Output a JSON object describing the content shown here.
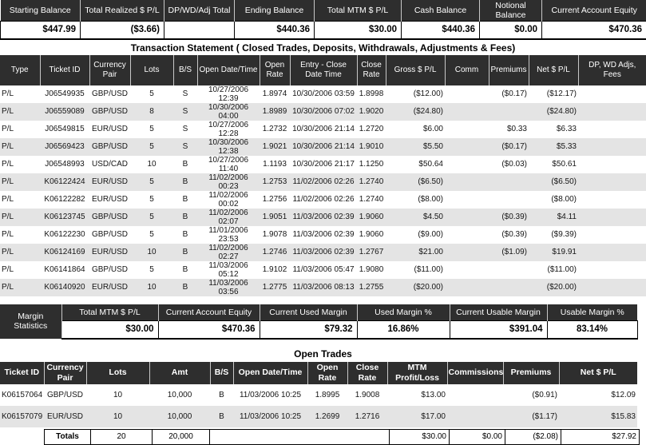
{
  "colors": {
    "header_bg": "#2e2e2e",
    "row_stripe": "#e4e4e4",
    "header_text": "#ffffff"
  },
  "summary": {
    "columns": [
      {
        "label": "Starting Balance",
        "value": "$447.99"
      },
      {
        "label": "Total Realized $ P/L",
        "value": "($3.66)"
      },
      {
        "label": "DP/WD/Adj Total",
        "value": ""
      },
      {
        "label": "Ending Balance",
        "value": "$440.36"
      },
      {
        "label": "Total MTM $ P/L",
        "value": "$30.00"
      },
      {
        "label": "Cash Balance",
        "value": "$440.36"
      },
      {
        "label": "Notional Balance",
        "value": "$0.00"
      },
      {
        "label": "Current Account Equity",
        "value": "$470.36"
      }
    ]
  },
  "transactions": {
    "title": "Transaction Statement ( Closed Trades, Deposits, Withdrawals, Adjustments & Fees)",
    "headers": [
      "Type",
      "Ticket ID",
      "Currency Pair",
      "Lots",
      "B/S",
      "Open Date/Time",
      "Open Rate",
      "Entry - Close Date Time",
      "Close Rate",
      "Gross $ P/L",
      "Comm",
      "Premiums",
      "Net $ P/L",
      "DP, WD Adjs, Fees"
    ],
    "rows": [
      [
        "P/L",
        "J06549935",
        "GBP/USD",
        "5",
        "S",
        "10/27/2006 12:39",
        "1.8974",
        "10/30/2006 03:59",
        "1.8998",
        "($12.00)",
        "",
        "($0.17)",
        "($12.17)",
        ""
      ],
      [
        "P/L",
        "J06559089",
        "GBP/USD",
        "8",
        "S",
        "10/30/2006 04:00",
        "1.8989",
        "10/30/2006 07:02",
        "1.9020",
        "($24.80)",
        "",
        "",
        "($24.80)",
        ""
      ],
      [
        "P/L",
        "J06549815",
        "EUR/USD",
        "5",
        "S",
        "10/27/2006 12:28",
        "1.2732",
        "10/30/2006 21:14",
        "1.2720",
        "$6.00",
        "",
        "$0.33",
        "$6.33",
        ""
      ],
      [
        "P/L",
        "J06569423",
        "GBP/USD",
        "5",
        "S",
        "10/30/2006 12:38",
        "1.9021",
        "10/30/2006 21:14",
        "1.9010",
        "$5.50",
        "",
        "($0.17)",
        "$5.33",
        ""
      ],
      [
        "P/L",
        "J06548993",
        "USD/CAD",
        "10",
        "B",
        "10/27/2006 11:40",
        "1.1193",
        "10/30/2006 21:17",
        "1.1250",
        "$50.64",
        "",
        "($0.03)",
        "$50.61",
        ""
      ],
      [
        "P/L",
        "K06122424",
        "EUR/USD",
        "5",
        "B",
        "11/02/2006 00:23",
        "1.2753",
        "11/02/2006 02:26",
        "1.2740",
        "($6.50)",
        "",
        "",
        "($6.50)",
        ""
      ],
      [
        "P/L",
        "K06122282",
        "EUR/USD",
        "5",
        "B",
        "11/02/2006 00:02",
        "1.2756",
        "11/02/2006 02:26",
        "1.2740",
        "($8.00)",
        "",
        "",
        "($8.00)",
        ""
      ],
      [
        "P/L",
        "K06123745",
        "GBP/USD",
        "5",
        "B",
        "11/02/2006 02:07",
        "1.9051",
        "11/03/2006 02:39",
        "1.9060",
        "$4.50",
        "",
        "($0.39)",
        "$4.11",
        ""
      ],
      [
        "P/L",
        "K06122230",
        "GBP/USD",
        "5",
        "B",
        "11/01/2006 23:53",
        "1.9078",
        "11/03/2006 02:39",
        "1.9060",
        "($9.00)",
        "",
        "($0.39)",
        "($9.39)",
        ""
      ],
      [
        "P/L",
        "K06124169",
        "EUR/USD",
        "10",
        "B",
        "11/02/2006 02:27",
        "1.2746",
        "11/03/2006 02:39",
        "1.2767",
        "$21.00",
        "",
        "($1.09)",
        "$19.91",
        ""
      ],
      [
        "P/L",
        "K06141864",
        "GBP/USD",
        "5",
        "B",
        "11/03/2006 05:12",
        "1.9102",
        "11/03/2006 05:47",
        "1.9080",
        "($11.00)",
        "",
        "",
        "($11.00)",
        ""
      ],
      [
        "P/L",
        "K06140920",
        "EUR/USD",
        "10",
        "B",
        "11/03/2006 03:56",
        "1.2775",
        "11/03/2006 08:13",
        "1.2755",
        "($20.00)",
        "",
        "",
        "($20.00)",
        ""
      ]
    ]
  },
  "margin_statistics": {
    "label": "Margin Statistics",
    "columns": [
      {
        "label": "Total MTM $ P/L",
        "value": "$30.00"
      },
      {
        "label": "Current Account Equity",
        "value": "$470.36"
      },
      {
        "label": "Current Used Margin",
        "value": "$79.32"
      },
      {
        "label": "Used Margin %",
        "value": "16.86%"
      },
      {
        "label": "Current Usable Margin",
        "value": "$391.04"
      },
      {
        "label": "Usable Margin %",
        "value": "83.14%"
      }
    ]
  },
  "open_trades": {
    "title": "Open Trades",
    "headers": [
      "Ticket ID",
      "Currency Pair",
      "Lots",
      "Amt",
      "B/S",
      "Open Date/Time",
      "Open Rate",
      "Close Rate",
      "MTM Profit/Loss",
      "Commissions",
      "Premiums",
      "Net $ P/L"
    ],
    "rows": [
      [
        "K06157064",
        "GBP/USD",
        "10",
        "10,000",
        "B",
        "11/03/2006 10:25",
        "1.8995",
        "1.9008",
        "$13.00",
        "",
        "($0.91)",
        "$12.09"
      ],
      [
        "K06157079",
        "EUR/USD",
        "10",
        "10,000",
        "B",
        "11/03/2006 10:25",
        "1.2699",
        "1.2716",
        "$17.00",
        "",
        "($1.17)",
        "$15.83"
      ]
    ],
    "totals_row": [
      "Totals",
      "20",
      "20,000",
      "",
      "$30.00",
      "$0.00",
      "($2.08)",
      "$27.92"
    ]
  }
}
